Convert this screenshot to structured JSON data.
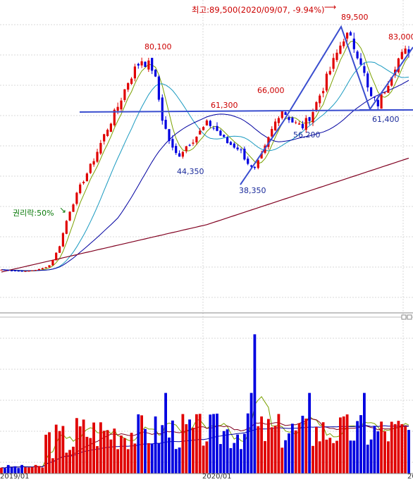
{
  "chart_data": {
    "type": "candlestick",
    "peak_note": "최고:89,500(2020/09/07, -9.94%)",
    "rights_note": "권리락:50%",
    "x_tick_labels": [
      "2019/01",
      "2020/01",
      "20"
    ],
    "price_labels": [
      {
        "text": "80,100",
        "value": 80100
      },
      {
        "text": "61,300",
        "value": 61300
      },
      {
        "text": "66,000",
        "value": 66000
      },
      {
        "text": "89,500",
        "value": 89500
      },
      {
        "text": "83,000",
        "value": 83000
      },
      {
        "text": "44,350",
        "value": 44350
      },
      {
        "text": "38,350",
        "value": 38350
      },
      {
        "text": "56,200",
        "value": 56200
      },
      {
        "text": "61,400",
        "value": 61400
      }
    ],
    "colors": {
      "up": "#e00000",
      "down": "#0000e0",
      "ma_short": "#7aa000",
      "ma_mid": "#1a9ac0",
      "ma_long": "#0000a0",
      "ma_longest": "#800020",
      "trendline": "#3a4ecf",
      "label_red": "#cc0000",
      "label_blue": "#1a2a9a",
      "label_green": "#0a7a0a"
    },
    "grid": true
  }
}
